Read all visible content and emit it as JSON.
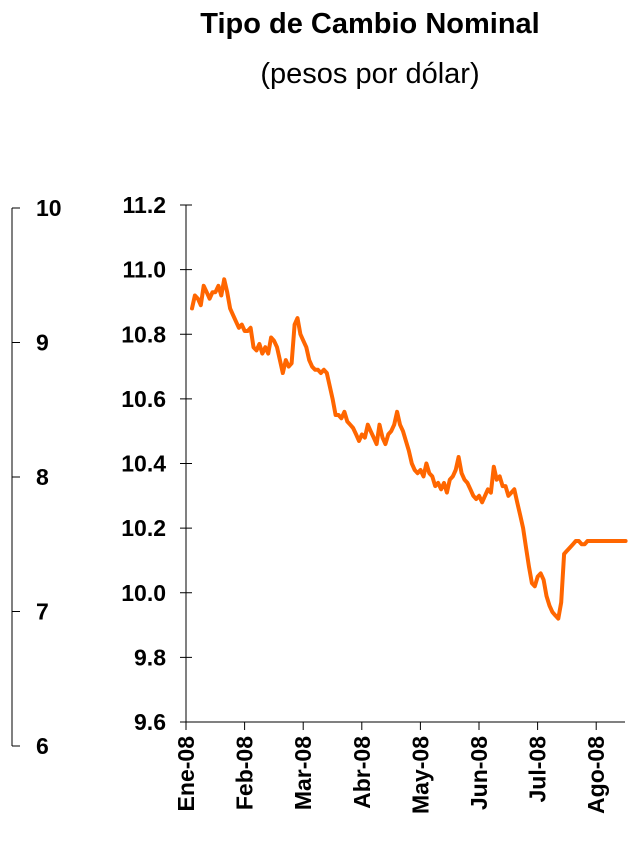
{
  "chart_data": {
    "type": "line",
    "title": "Tipo de Cambio Nominal",
    "subtitle": "(pesos por dólar)",
    "left_axis": {
      "ticks": [
        "10",
        "9",
        "8",
        "7",
        "6"
      ],
      "ylim": [
        6,
        10
      ]
    },
    "right_axis": {
      "ticks": [
        "11.2",
        "11.0",
        "10.8",
        "10.6",
        "10.4",
        "10.2",
        "10.0",
        "9.8",
        "9.6"
      ],
      "ylim": [
        9.6,
        11.2
      ]
    },
    "x_categories": [
      "Ene-08",
      "Feb-08",
      "Mar-08",
      "Abr-08",
      "May-08",
      "Jun-08",
      "Jul-08",
      "Ago-08"
    ],
    "series": [
      {
        "color": "#ff6600",
        "x": [
          0,
          0.05,
          0.1,
          0.15,
          0.2,
          0.25,
          0.3,
          0.35,
          0.4,
          0.45,
          0.5,
          0.55,
          0.6,
          0.65,
          0.7,
          0.75,
          0.8,
          0.85,
          0.9,
          0.95,
          1.0,
          1.05,
          1.1,
          1.15,
          1.2,
          1.25,
          1.3,
          1.35,
          1.4,
          1.45,
          1.5,
          1.55,
          1.6,
          1.65,
          1.7,
          1.75,
          1.8,
          1.85,
          1.9,
          1.95,
          2.0,
          2.05,
          2.1,
          2.15,
          2.2,
          2.25,
          2.3,
          2.35,
          2.4,
          2.45,
          2.5,
          2.55,
          2.6,
          2.65,
          2.7,
          2.75,
          2.8,
          2.85,
          2.9,
          2.95,
          3.0,
          3.05,
          3.1,
          3.15,
          3.2,
          3.25,
          3.3,
          3.35,
          3.4,
          3.45,
          3.5,
          3.55,
          3.6,
          3.65,
          3.7,
          3.75,
          3.8,
          3.85,
          3.9,
          3.95,
          4.0,
          4.05,
          4.1,
          4.15,
          4.2,
          4.25,
          4.3,
          4.35,
          4.4,
          4.45,
          4.5,
          4.55,
          4.6,
          4.65,
          4.7,
          4.75,
          4.8,
          4.85,
          4.9,
          4.95,
          5.0,
          5.05,
          5.1,
          5.15,
          5.2,
          5.25,
          5.3,
          5.35,
          5.4,
          5.45,
          5.5,
          5.55,
          5.6,
          5.65,
          5.7,
          5.75,
          5.8,
          5.85,
          5.9,
          5.95,
          6.0,
          6.05,
          6.1,
          6.15,
          6.2,
          6.25,
          6.3,
          6.35,
          6.4,
          6.45,
          6.5,
          6.55,
          6.6,
          6.65,
          6.7,
          6.75,
          6.8,
          6.85,
          6.9,
          6.95,
          7.0,
          7.05,
          7.1,
          7.15,
          7.2,
          7.25,
          7.3,
          7.35,
          7.4
        ],
        "y": [
          10.88,
          10.92,
          10.91,
          10.89,
          10.95,
          10.93,
          10.91,
          10.93,
          10.93,
          10.95,
          10.92,
          10.97,
          10.93,
          10.88,
          10.86,
          10.84,
          10.82,
          10.83,
          10.81,
          10.81,
          10.82,
          10.76,
          10.75,
          10.77,
          10.74,
          10.76,
          10.74,
          10.79,
          10.78,
          10.76,
          10.72,
          10.68,
          10.72,
          10.7,
          10.71,
          10.83,
          10.85,
          10.8,
          10.78,
          10.76,
          10.72,
          10.7,
          10.69,
          10.69,
          10.68,
          10.69,
          10.68,
          10.64,
          10.6,
          10.55,
          10.55,
          10.54,
          10.56,
          10.53,
          10.52,
          10.51,
          10.49,
          10.47,
          10.49,
          10.48,
          10.52,
          10.5,
          10.48,
          10.46,
          10.52,
          10.48,
          10.46,
          10.49,
          10.5,
          10.52,
          10.56,
          10.52,
          10.5,
          10.47,
          10.44,
          10.4,
          10.38,
          10.37,
          10.38,
          10.36,
          10.4,
          10.37,
          10.36,
          10.33,
          10.34,
          10.32,
          10.34,
          10.31,
          10.35,
          10.36,
          10.38,
          10.42,
          10.37,
          10.35,
          10.34,
          10.32,
          10.3,
          10.29,
          10.3,
          10.28,
          10.3,
          10.32,
          10.31,
          10.39,
          10.35,
          10.36,
          10.33,
          10.33,
          10.3,
          10.31,
          10.32,
          10.28,
          10.24,
          10.2,
          10.14,
          10.08,
          10.03,
          10.02,
          10.05,
          10.06,
          10.04,
          9.99,
          9.96,
          9.94,
          9.93,
          9.92,
          9.97,
          10.12,
          10.13,
          10.14,
          10.15,
          10.16,
          10.16,
          10.15,
          10.15,
          10.16,
          10.16,
          10.16,
          10.16,
          10.16,
          10.16,
          10.16,
          10.16,
          10.16,
          10.16,
          10.16,
          10.16,
          10.16,
          10.16
        ]
      }
    ]
  }
}
